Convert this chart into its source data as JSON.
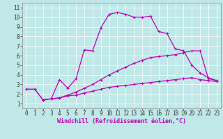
{
  "xlabel": "Windchill (Refroidissement éolien,°C)",
  "bg_color": "#c0e8e8",
  "line_color": "#bb00bb",
  "grid_color": "#ffffff",
  "xlim": [
    -0.5,
    23.5
  ],
  "ylim": [
    0.5,
    11.5
  ],
  "xticks": [
    0,
    1,
    2,
    3,
    4,
    5,
    6,
    7,
    8,
    9,
    10,
    11,
    12,
    13,
    14,
    15,
    16,
    17,
    18,
    19,
    20,
    21,
    22,
    23
  ],
  "yticks": [
    1,
    2,
    3,
    4,
    5,
    6,
    7,
    8,
    9,
    10,
    11
  ],
  "line1_x": [
    0,
    1,
    2,
    3,
    4,
    5,
    6,
    7,
    8,
    9,
    10,
    11,
    12,
    13,
    14,
    15,
    16,
    17,
    18,
    19,
    20,
    21,
    22,
    23
  ],
  "line1_y": [
    2.5,
    2.5,
    1.4,
    1.5,
    1.6,
    1.8,
    1.9,
    2.1,
    2.3,
    2.5,
    2.7,
    2.8,
    2.9,
    3.0,
    3.1,
    3.2,
    3.3,
    3.4,
    3.5,
    3.6,
    3.7,
    3.5,
    3.4,
    3.3
  ],
  "line2_x": [
    0,
    1,
    2,
    3,
    4,
    5,
    6,
    7,
    8,
    9,
    10,
    11,
    12,
    13,
    14,
    15,
    16,
    17,
    18,
    19,
    20,
    21,
    22,
    23
  ],
  "line2_y": [
    2.5,
    2.5,
    1.4,
    1.5,
    1.6,
    1.9,
    2.2,
    2.6,
    3.0,
    3.5,
    4.0,
    4.4,
    4.8,
    5.2,
    5.5,
    5.8,
    5.9,
    6.0,
    6.1,
    6.3,
    6.5,
    6.5,
    3.6,
    3.4
  ],
  "line3_x": [
    2,
    3,
    4,
    5,
    6,
    7,
    8,
    9,
    10,
    11,
    12,
    13,
    14,
    15,
    16,
    17,
    18,
    19,
    20,
    21,
    22,
    23
  ],
  "line3_y": [
    1.4,
    1.5,
    3.5,
    2.6,
    3.6,
    6.6,
    6.5,
    8.9,
    10.3,
    10.5,
    10.3,
    10.0,
    10.0,
    10.1,
    8.5,
    8.3,
    6.7,
    6.5,
    5.0,
    4.2,
    3.7,
    3.4
  ],
  "xlabel_fontsize": 6,
  "tick_fontsize": 5.5
}
